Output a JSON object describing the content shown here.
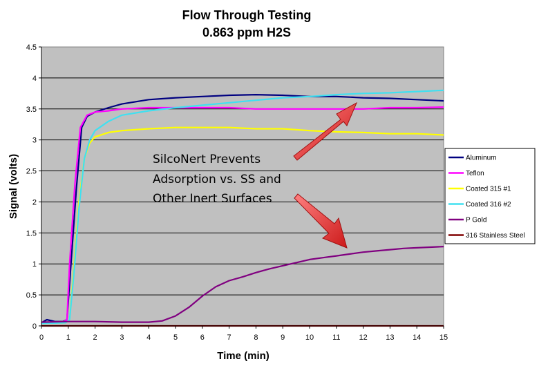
{
  "chart_data": {
    "type": "line",
    "title": "Flow Through Testing",
    "subtitle": "0.863 ppm H2S",
    "xlabel": "Time (min)",
    "ylabel": "Signal (volts)",
    "xlim": [
      0,
      15
    ],
    "ylim": [
      0,
      4.5
    ],
    "x_ticks": [
      "0",
      "1",
      "2",
      "3",
      "4",
      "5",
      "6",
      "7",
      "8",
      "9",
      "10",
      "11",
      "12",
      "13",
      "14",
      "15"
    ],
    "y_ticks": [
      "0",
      "0.5",
      "1",
      "1.5",
      "2",
      "2.5",
      "3",
      "3.5",
      "4",
      "4.5"
    ],
    "grid": "horizontal",
    "legend_position": "right",
    "annotation": {
      "lines": [
        "SilcoNert Prevents",
        "Adsorption vs. SS and",
        "Other Inert Surfaces"
      ]
    },
    "series": [
      {
        "name": "Aluminum",
        "color": "#000080",
        "points": [
          [
            0,
            0.05
          ],
          [
            0.2,
            0.1
          ],
          [
            0.5,
            0.07
          ],
          [
            0.8,
            0.07
          ],
          [
            0.95,
            0.1
          ],
          [
            1.1,
            1.0
          ],
          [
            1.3,
            2.2
          ],
          [
            1.5,
            3.2
          ],
          [
            1.7,
            3.38
          ],
          [
            2,
            3.45
          ],
          [
            2.5,
            3.52
          ],
          [
            3,
            3.58
          ],
          [
            4,
            3.65
          ],
          [
            5,
            3.68
          ],
          [
            6,
            3.7
          ],
          [
            7,
            3.72
          ],
          [
            8,
            3.73
          ],
          [
            9,
            3.72
          ],
          [
            10,
            3.7
          ],
          [
            11,
            3.7
          ],
          [
            12,
            3.68
          ],
          [
            13,
            3.67
          ],
          [
            14,
            3.65
          ],
          [
            15,
            3.63
          ]
        ]
      },
      {
        "name": "Teflon",
        "color": "#FF00FF",
        "points": [
          [
            0,
            0.05
          ],
          [
            0.8,
            0.06
          ],
          [
            0.95,
            0.1
          ],
          [
            1.05,
            1.0
          ],
          [
            1.25,
            2.3
          ],
          [
            1.45,
            3.2
          ],
          [
            1.7,
            3.4
          ],
          [
            2,
            3.45
          ],
          [
            2.5,
            3.47
          ],
          [
            3,
            3.5
          ],
          [
            4,
            3.52
          ],
          [
            5,
            3.52
          ],
          [
            6,
            3.52
          ],
          [
            7,
            3.52
          ],
          [
            8,
            3.5
          ],
          [
            9,
            3.5
          ],
          [
            10,
            3.5
          ],
          [
            11,
            3.5
          ],
          [
            12,
            3.5
          ],
          [
            13,
            3.52
          ],
          [
            14,
            3.52
          ],
          [
            15,
            3.53
          ]
        ]
      },
      {
        "name": "Coated 315 #1",
        "color": "#FFFF00",
        "points": [
          [
            0,
            0.04
          ],
          [
            0.9,
            0.05
          ],
          [
            1.05,
            0.1
          ],
          [
            1.2,
            0.9
          ],
          [
            1.4,
            2.0
          ],
          [
            1.6,
            2.7
          ],
          [
            1.8,
            2.95
          ],
          [
            2,
            3.05
          ],
          [
            2.5,
            3.12
          ],
          [
            3,
            3.15
          ],
          [
            4,
            3.18
          ],
          [
            5,
            3.2
          ],
          [
            6,
            3.2
          ],
          [
            7,
            3.2
          ],
          [
            8,
            3.18
          ],
          [
            9,
            3.18
          ],
          [
            10,
            3.15
          ],
          [
            11,
            3.13
          ],
          [
            12,
            3.12
          ],
          [
            13,
            3.1
          ],
          [
            14,
            3.1
          ],
          [
            15,
            3.08
          ]
        ]
      },
      {
        "name": "Coated 316 #2",
        "color": "#40E0F0",
        "points": [
          [
            0,
            0.04
          ],
          [
            0.9,
            0.05
          ],
          [
            1.05,
            0.1
          ],
          [
            1.2,
            0.8
          ],
          [
            1.4,
            1.9
          ],
          [
            1.6,
            2.7
          ],
          [
            1.8,
            3.0
          ],
          [
            2,
            3.15
          ],
          [
            2.5,
            3.3
          ],
          [
            3,
            3.4
          ],
          [
            4,
            3.47
          ],
          [
            5,
            3.52
          ],
          [
            6,
            3.56
          ],
          [
            7,
            3.6
          ],
          [
            8,
            3.64
          ],
          [
            9,
            3.68
          ],
          [
            10,
            3.7
          ],
          [
            11,
            3.73
          ],
          [
            12,
            3.75
          ],
          [
            13,
            3.76
          ],
          [
            14,
            3.78
          ],
          [
            15,
            3.8
          ]
        ]
      },
      {
        "name": "P Gold",
        "color": "#800080",
        "points": [
          [
            0,
            0.06
          ],
          [
            1,
            0.07
          ],
          [
            2,
            0.07
          ],
          [
            3,
            0.06
          ],
          [
            4,
            0.06
          ],
          [
            4.5,
            0.08
          ],
          [
            5,
            0.16
          ],
          [
            5.5,
            0.3
          ],
          [
            6,
            0.48
          ],
          [
            6.5,
            0.63
          ],
          [
            7,
            0.73
          ],
          [
            7.5,
            0.79
          ],
          [
            8,
            0.86
          ],
          [
            8.5,
            0.92
          ],
          [
            9,
            0.97
          ],
          [
            9.5,
            1.02
          ],
          [
            10,
            1.07
          ],
          [
            10.5,
            1.1
          ],
          [
            11,
            1.13
          ],
          [
            11.5,
            1.16
          ],
          [
            12,
            1.19
          ],
          [
            12.5,
            1.21
          ],
          [
            13,
            1.23
          ],
          [
            13.5,
            1.25
          ],
          [
            14,
            1.26
          ],
          [
            14.5,
            1.27
          ],
          [
            15,
            1.28
          ]
        ]
      },
      {
        "name": "316 Stainless Steel",
        "color": "#800000",
        "points": [
          [
            0,
            0.0
          ],
          [
            5,
            0.0
          ],
          [
            10,
            0.0
          ],
          [
            15,
            0.0
          ]
        ]
      }
    ]
  }
}
